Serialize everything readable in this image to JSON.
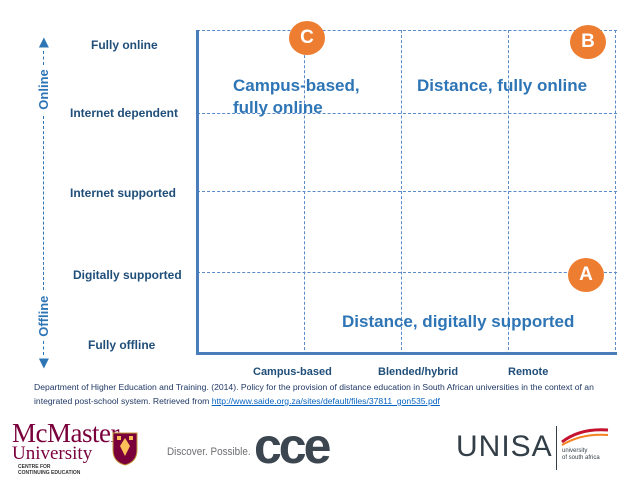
{
  "y_axis": {
    "levels": [
      "Fully online",
      "Internet dependent",
      "Internet supported",
      "Digitally supported",
      "Fully offline"
    ],
    "title_top": "Online",
    "title_bottom": "Offline"
  },
  "x_axis": {
    "levels": [
      "Campus-based",
      "Blended/hybrid",
      "Remote"
    ]
  },
  "quadrants": {
    "campus_online": "Campus-based,\nfully online",
    "distance_online": "Distance, fully online",
    "distance_digital": "Distance, digitally supported"
  },
  "badges": {
    "c": "C",
    "b": "B",
    "a": "A"
  },
  "reference": {
    "text": "Department of Higher Education and Training. (2014). Policy for the provision of distance education in South African universities in the context of an integrated post-school system. Retrieved from ",
    "link": "http://www.saide.org.za/sites/default/files/37811_gon535.pdf"
  },
  "logos": {
    "mcmaster_name": "McMaster",
    "mcmaster_sub": "University",
    "mcmaster_small": "CENTRE FOR\nCONTINUING EDUCATION",
    "tagline": "Discover. Possible.",
    "cce": "cce",
    "unisa": "UNISA",
    "unisa_small": "university\nof south africa"
  },
  "colors": {
    "accent": "#ed7d31",
    "text_blue": "#2e75b6",
    "label_navy": "#1f4e79",
    "grid": "#5b8bc7",
    "mcmaster_maroon": "#7a003c"
  }
}
